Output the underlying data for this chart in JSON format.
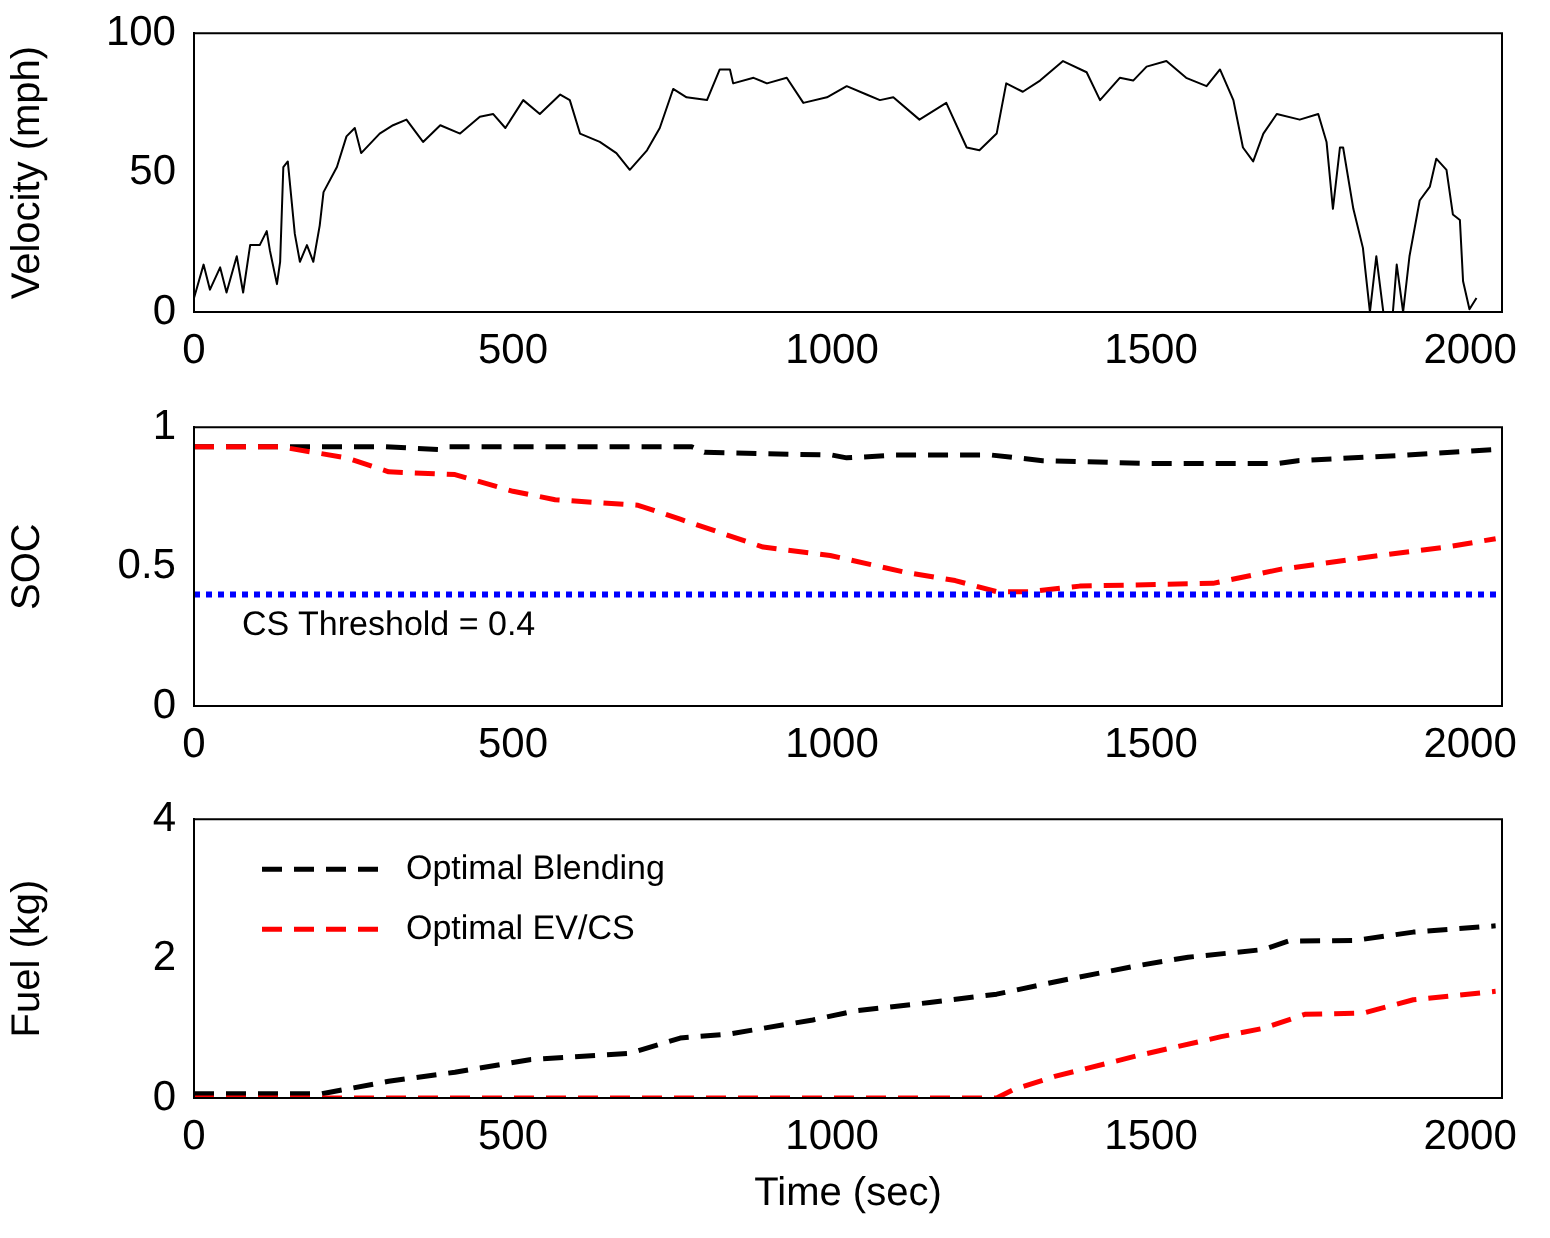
{
  "chart_data": [
    {
      "type": "line",
      "ylabel": "Velocity (mph)",
      "xlim": [
        0,
        2050
      ],
      "xticks": [
        0,
        500,
        1000,
        1500,
        2000
      ],
      "ylim": [
        0,
        100
      ],
      "yticks": [
        0,
        50,
        100
      ],
      "grid": false,
      "legend": false,
      "line_style": "solid",
      "marker": "none",
      "series": [
        {
          "color": "#000000",
          "x": [
            0,
            15,
            25,
            41,
            51,
            67,
            77,
            88,
            103,
            114,
            119,
            130,
            135,
            140,
            147,
            158,
            166,
            177,
            187,
            197,
            203,
            224,
            239,
            252,
            262,
            291,
            312,
            333,
            359,
            386,
            417,
            448,
            469,
            488,
            516,
            542,
            574,
            589,
            605,
            636,
            662,
            683,
            710,
            730,
            751,
            772,
            804,
            824,
            840,
            845,
            877,
            898,
            929,
            955,
            992,
            1023,
            1054,
            1075,
            1096,
            1137,
            1179,
            1211,
            1231,
            1258,
            1273,
            1299,
            1326,
            1362,
            1399,
            1420,
            1451,
            1472,
            1493,
            1524,
            1555,
            1587,
            1608,
            1629,
            1644,
            1660,
            1676,
            1697,
            1733,
            1762,
            1775,
            1785,
            1796,
            1801,
            1817,
            1832,
            1843,
            1853,
            1864,
            1879,
            1885,
            1895,
            1905,
            1921,
            1937,
            1947,
            1963,
            1973,
            1984,
            1989,
            1999,
            2010
          ],
          "values": [
            5,
            17,
            8,
            16,
            7,
            20,
            7,
            24,
            24,
            29,
            22,
            10,
            18,
            52,
            54,
            28,
            18,
            24,
            18,
            31,
            43,
            52,
            63,
            66,
            57,
            64,
            67,
            69,
            61,
            67,
            64,
            70,
            71,
            66,
            76,
            71,
            78,
            76,
            64,
            61,
            57,
            51,
            58,
            66,
            80,
            77,
            76,
            87,
            87,
            82,
            84,
            82,
            84,
            75,
            77,
            81,
            78,
            76,
            77,
            69,
            75,
            59,
            58,
            64,
            82,
            79,
            83,
            90,
            86,
            76,
            84,
            83,
            88,
            90,
            84,
            81,
            87,
            76,
            59,
            54,
            64,
            71,
            69,
            71,
            61,
            37,
            59,
            59,
            37,
            23,
            0,
            20,
            0,
            0,
            17,
            0,
            20,
            40,
            45,
            55,
            51,
            35,
            33,
            11,
            1,
            5
          ]
        }
      ]
    },
    {
      "type": "line",
      "ylabel": "SOC",
      "xlim": [
        0,
        2050
      ],
      "xticks": [
        0,
        500,
        1000,
        1500,
        2000
      ],
      "ylim": [
        0,
        1
      ],
      "yticks": [
        0,
        0.5,
        1
      ],
      "grid": false,
      "legend": false,
      "line_style": "dashed",
      "marker": "none",
      "ref_lines": [
        {
          "axis": "y",
          "value": 0.4,
          "label": "CS Threshold = 0.4",
          "color": "#0000ff",
          "line_style": "dotted"
        }
      ],
      "series": [
        {
          "color": "#000000",
          "x": [
            0,
            300,
            383,
            400,
            780,
            800,
            1000,
            1023,
            1100,
            1250,
            1330,
            1500,
            1700,
            1730,
            1900,
            2040
          ],
          "values": [
            0.93,
            0.93,
            0.92,
            0.93,
            0.93,
            0.91,
            0.9,
            0.89,
            0.9,
            0.9,
            0.88,
            0.87,
            0.87,
            0.88,
            0.9,
            0.92
          ]
        },
        {
          "color": "#ff0000",
          "x": [
            0,
            135,
            239,
            305,
            409,
            500,
            566,
            696,
            762,
            892,
            997,
            1114,
            1193,
            1258,
            1310,
            1388,
            1597,
            1702,
            1859,
            1963,
            2040
          ],
          "values": [
            0.93,
            0.93,
            0.89,
            0.84,
            0.83,
            0.77,
            0.74,
            0.72,
            0.67,
            0.57,
            0.54,
            0.48,
            0.45,
            0.41,
            0.41,
            0.43,
            0.44,
            0.49,
            0.54,
            0.57,
            0.6
          ]
        }
      ]
    },
    {
      "type": "line",
      "xlabel": "Time (sec)",
      "ylabel": "Fuel (kg)",
      "xlim": [
        0,
        2050
      ],
      "xticks": [
        0,
        500,
        1000,
        1500,
        2000
      ],
      "ylim": [
        0,
        4
      ],
      "yticks": [
        0,
        2,
        4
      ],
      "grid": false,
      "legend": "top left",
      "line_style": "dashed",
      "marker": "none",
      "series": [
        {
          "name": "Optimal Blending",
          "color": "#000000",
          "x": [
            0,
            200,
            305,
            409,
            526,
            683,
            762,
            840,
            970,
            1036,
            1153,
            1258,
            1362,
            1480,
            1558,
            1676,
            1715,
            1819,
            1911,
            2040
          ],
          "values": [
            0.06,
            0.06,
            0.24,
            0.37,
            0.55,
            0.64,
            0.86,
            0.92,
            1.12,
            1.25,
            1.37,
            1.49,
            1.69,
            1.9,
            2.02,
            2.13,
            2.25,
            2.26,
            2.38,
            2.47
          ]
        },
        {
          "name": "Optimal EV/CS",
          "color": "#ff0000",
          "x": [
            0,
            1258,
            1284,
            1349,
            1480,
            1610,
            1676,
            1741,
            1833,
            1911,
            2040
          ],
          "values": [
            0,
            0,
            0.12,
            0.31,
            0.61,
            0.88,
            1.0,
            1.2,
            1.22,
            1.41,
            1.53
          ]
        }
      ]
    }
  ]
}
